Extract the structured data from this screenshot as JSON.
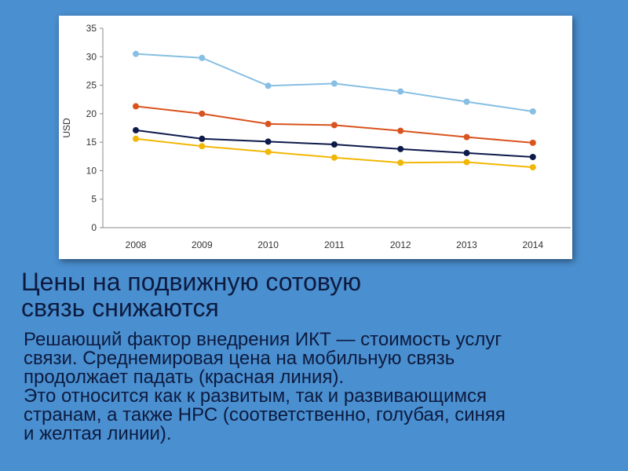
{
  "chart_data": {
    "type": "line",
    "ylabel": "USD",
    "ylim": [
      0,
      35
    ],
    "yticks": [
      0,
      5,
      10,
      15,
      20,
      25,
      30,
      35
    ],
    "categories": [
      "2008",
      "2009",
      "2010",
      "2011",
      "2012",
      "2013",
      "2014"
    ],
    "grid": false,
    "series": [
      {
        "color": "#86bfe3",
        "values": [
          30.5,
          29.8,
          24.9,
          25.3,
          23.9,
          22.1,
          20.4
        ]
      },
      {
        "color": "#d9531e",
        "values": [
          21.3,
          20.0,
          18.2,
          18.0,
          17.0,
          15.9,
          14.9
        ]
      },
      {
        "color": "#0e1a4a",
        "values": [
          17.1,
          15.6,
          15.1,
          14.6,
          13.8,
          13.1,
          12.4
        ]
      },
      {
        "color": "#f2b705",
        "values": [
          15.6,
          14.3,
          13.3,
          12.3,
          11.4,
          11.5,
          10.6
        ]
      }
    ]
  },
  "title": {
    "line1": "Цены на подвижную сотовую",
    "line2": "связь снижаются"
  },
  "body": {
    "line1": "Решающий фактор внедрения ИКТ — стоимость услуг",
    "line2": "связи. Среднемировая цена на мобильную связь",
    "line3": "продолжает падать (красная линия).",
    "line4": "Это относится как к развитым, так и развивающимся",
    "line5": "странам, а также НРС (соответственно, голубая, синяя",
    "line6": "и желтая линии)."
  },
  "colors": {
    "background": "#4a8fd0",
    "text": "#0d1b3f"
  }
}
